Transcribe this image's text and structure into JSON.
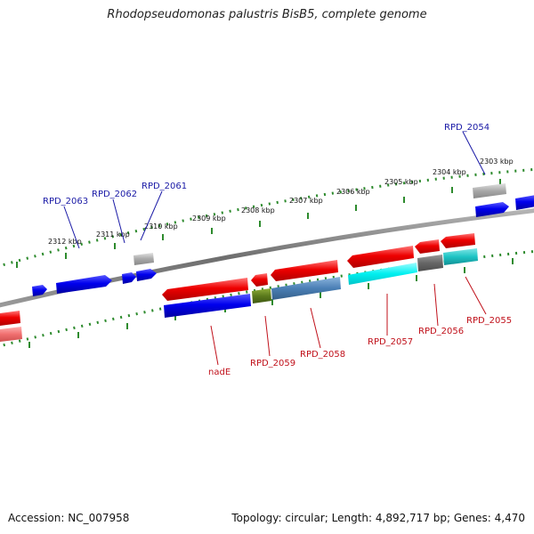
{
  "title": "Rhodopseudomonas palustris BisB5, complete genome",
  "footer": {
    "accession": "Accession: NC_007958",
    "summary": "Topology: circular; Length: 4,892,717 bp; Genes: 4,470"
  },
  "kbp_labels": [
    "2303 kbp",
    "2304 kbp",
    "2305 kbp",
    "2306 kbp",
    "2307 kbp",
    "2308 kbp",
    "2309 kbp",
    "2310 kbp",
    "2311 kbp",
    "2312 kbp"
  ],
  "gene_labels": {
    "top": [
      "RPD_2054",
      "RPD_2061",
      "RPD_2062",
      "RPD_2063"
    ],
    "bottom": [
      "RPD_2055",
      "RPD_2056",
      "RPD_2057",
      "RPD_2058",
      "RPD_2059",
      "nadE"
    ]
  },
  "colors": {
    "backbone": "#7f7f7f",
    "scale_dots": "#2e8b2e",
    "top_label": "#1a1aa6",
    "bottom_label": "#c0101a"
  }
}
